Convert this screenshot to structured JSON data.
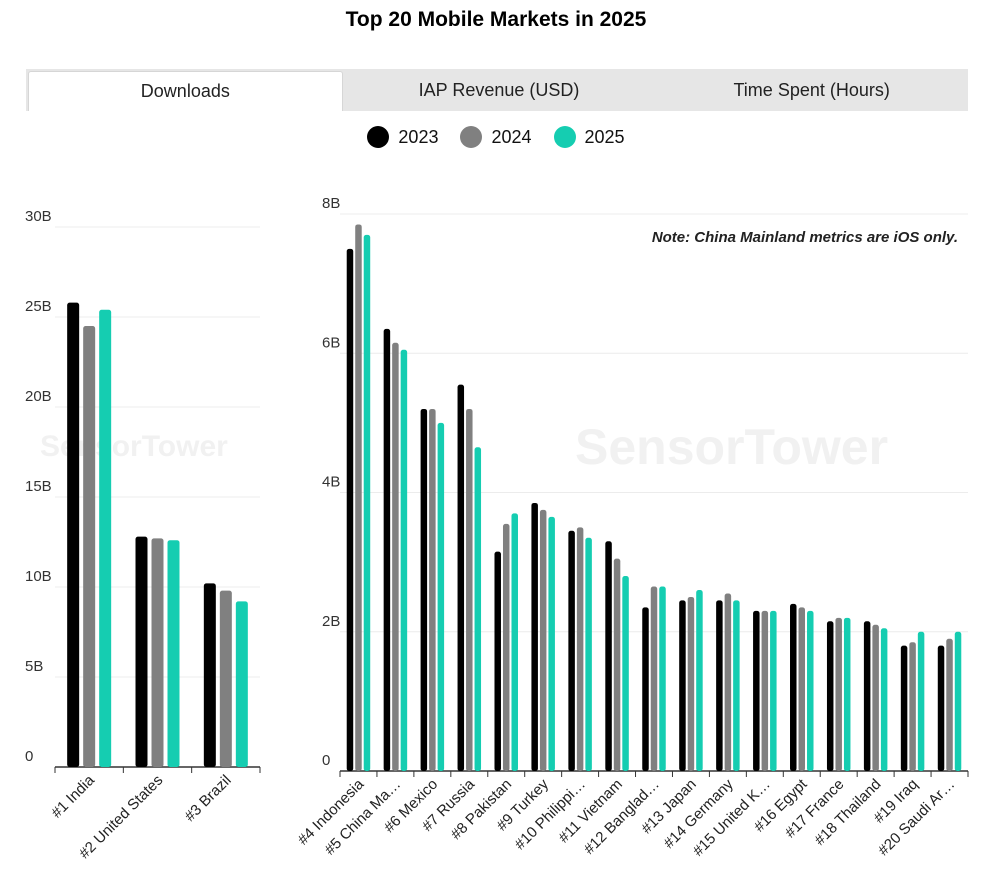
{
  "title": "Top 20 Mobile Markets in 2025",
  "tabs": [
    {
      "label": "Downloads",
      "active": true
    },
    {
      "label": "IAP Revenue (USD)",
      "active": false
    },
    {
      "label": "Time Spent (Hours)",
      "active": false
    }
  ],
  "note": "Note: China Mainland metrics are iOS only.",
  "watermark": "SensorTower",
  "chart_data": [
    {
      "type": "bar",
      "categories": [
        "#1 India",
        "#2 United States",
        "#3 Brazil"
      ],
      "series": [
        {
          "name": "2023",
          "color": "#000000",
          "values": [
            25.8,
            12.8,
            10.2
          ]
        },
        {
          "name": "2024",
          "color": "#808080",
          "values": [
            24.5,
            12.7,
            9.8
          ]
        },
        {
          "name": "2025",
          "color": "#15cdb1",
          "values": [
            25.4,
            12.6,
            9.2
          ]
        }
      ],
      "yticks": [
        "0",
        "5B",
        "10B",
        "15B",
        "20B",
        "25B",
        "30B"
      ],
      "ylim": [
        0,
        30
      ]
    },
    {
      "type": "bar",
      "categories": [
        "#4 Indonesia",
        "#5 China Ma…",
        "#6 Mexico",
        "#7 Russia",
        "#8 Pakistan",
        "#9 Turkey",
        "#10 Philippi…",
        "#11 Vietnam",
        "#12 Banglad…",
        "#13 Japan",
        "#14 Germany",
        "#15 United K…",
        "#16 Egypt",
        "#17 France",
        "#18 Thailand",
        "#19 Iraq",
        "#20 Saudi Ar…"
      ],
      "series": [
        {
          "name": "2023",
          "color": "#000000",
          "values": [
            7.5,
            6.35,
            5.2,
            5.55,
            3.15,
            3.85,
            3.45,
            3.3,
            2.35,
            2.45,
            2.45,
            2.3,
            2.4,
            2.15,
            2.15,
            1.8,
            1.8
          ]
        },
        {
          "name": "2024",
          "color": "#808080",
          "values": [
            7.85,
            6.15,
            5.2,
            5.2,
            3.55,
            3.75,
            3.5,
            3.05,
            2.65,
            2.5,
            2.55,
            2.3,
            2.35,
            2.2,
            2.1,
            1.85,
            1.9
          ]
        },
        {
          "name": "2025",
          "color": "#15cdb1",
          "values": [
            7.7,
            6.05,
            5.0,
            4.65,
            3.7,
            3.65,
            3.35,
            2.8,
            2.65,
            2.6,
            2.45,
            2.3,
            2.3,
            2.2,
            2.05,
            2.0,
            2.0
          ]
        }
      ],
      "yticks": [
        "0",
        "2B",
        "4B",
        "6B",
        "8B"
      ],
      "ylim": [
        0,
        8
      ]
    }
  ]
}
